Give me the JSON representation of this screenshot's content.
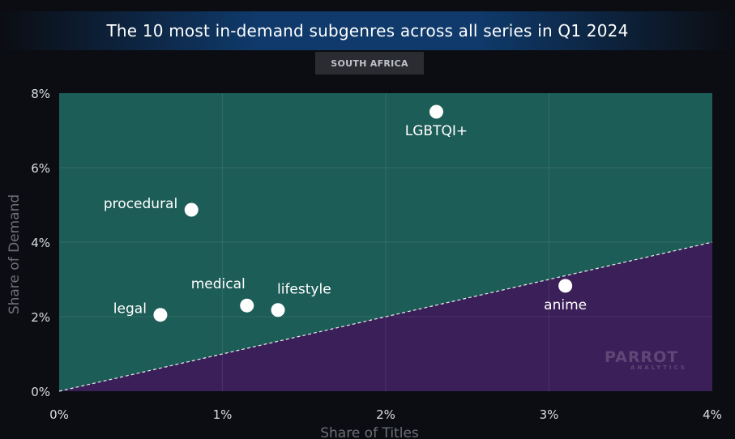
{
  "title": "The 10 most in-demand subgenres across all series in Q1 2024",
  "region": "SOUTH AFRICA",
  "watermark": {
    "brand": "PARROT",
    "sub": "ANALYTICS"
  },
  "colors": {
    "upper_region": "#1d5d57",
    "lower_region": "#3b1f58",
    "point": "#ffffff",
    "reference_line": "#ffffff"
  },
  "chart_data": {
    "type": "scatter",
    "title": "The 10 most in-demand subgenres across all series in Q1 2024",
    "subtitle": "SOUTH AFRICA",
    "xlabel": "Share of Titles",
    "ylabel": "Share of Demand",
    "xlim": [
      0,
      4
    ],
    "ylim": [
      0,
      8
    ],
    "xticks": [
      0,
      1,
      2,
      3,
      4
    ],
    "yticks": [
      0,
      2,
      4,
      6,
      8
    ],
    "xtick_labels": [
      "0%",
      "1%",
      "2%",
      "3%",
      "4%"
    ],
    "ytick_labels": [
      "0%",
      "2%",
      "4%",
      "6%",
      "8%"
    ],
    "grid": true,
    "reference_line": {
      "style": "dashed",
      "from": [
        0,
        0
      ],
      "to": [
        4,
        4
      ]
    },
    "points": [
      {
        "label": "LGBTQI+",
        "x": 2.31,
        "y": 7.5,
        "label_pos": "below"
      },
      {
        "label": "procedural",
        "x": 0.81,
        "y": 4.87,
        "label_pos": "left-above"
      },
      {
        "label": "legal",
        "x": 0.62,
        "y": 2.05,
        "label_pos": "left-above"
      },
      {
        "label": "medical",
        "x": 1.15,
        "y": 2.3,
        "label_pos": "above-left"
      },
      {
        "label": "lifestyle",
        "x": 1.34,
        "y": 2.18,
        "label_pos": "right-above"
      },
      {
        "label": "anime",
        "x": 3.1,
        "y": 2.83,
        "label_pos": "below"
      }
    ]
  }
}
